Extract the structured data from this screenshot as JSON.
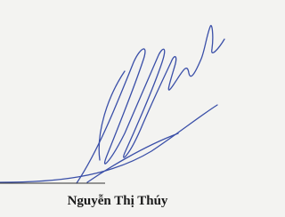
{
  "signer": {
    "name": "Nguyễn Thị Thúy"
  }
}
